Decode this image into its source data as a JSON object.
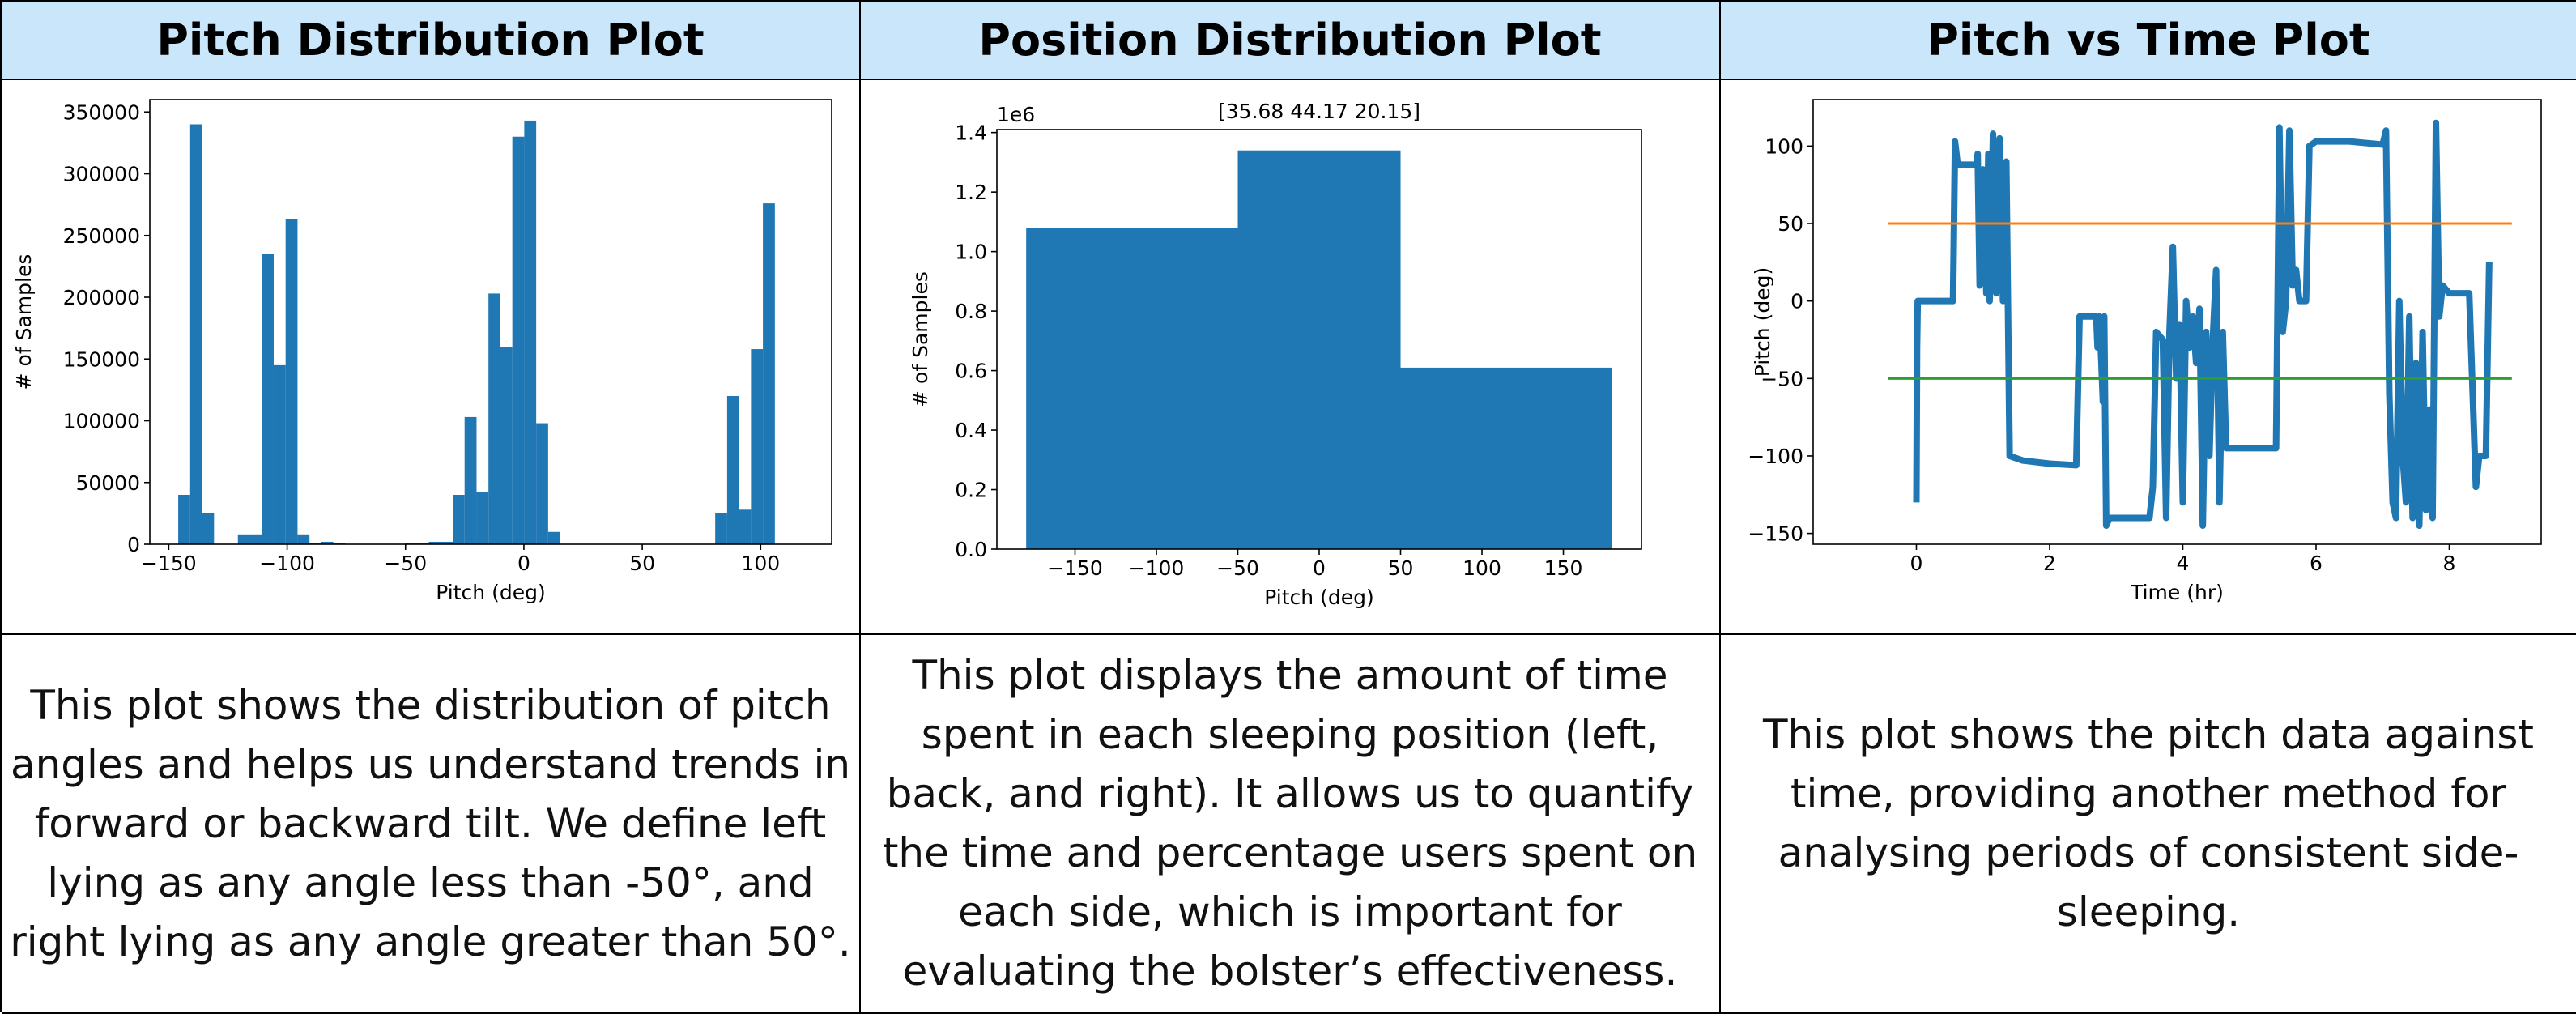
{
  "table": {
    "headers": [
      "Pitch Distribution Plot",
      "Position Distribution Plot",
      "Pitch vs Time Plot"
    ],
    "descriptions": [
      "This plot shows the distribution of pitch angles and helps us understand trends in forward or backward tilt. We define left lying as any angle less than -50°, and right lying as any angle greater than 50°.",
      "This plot displays the amount of time spent in each sleeping position (left, back, and right). It allows us to quantify the time and percentage users spent on each side, which is important for evaluating the bolster’s effectiveness.",
      "This plot shows the pitch data against time, providing another method for analysing periods of consistent side-sleeping."
    ]
  },
  "chart_data": [
    {
      "type": "histogram",
      "xlabel": "Pitch (deg)",
      "ylabel": "# of Samples",
      "color": "#1f77b4",
      "bins": [
        -146,
        -140.96,
        -135.92,
        -130.88,
        -125.84,
        -120.8,
        -115.76,
        -110.72,
        -105.68,
        -100.64,
        -95.6,
        -90.56,
        -85.52,
        -80.48,
        -75.44,
        -70.4,
        -65.36,
        -60.32,
        -55.28,
        -50.24,
        -45.2,
        -40.16,
        -35.12,
        -30.08,
        -25.04,
        -20,
        -14.96,
        -9.92,
        -4.88,
        0.16,
        5.2,
        10.24,
        15.28,
        20.32,
        25.36,
        30.4,
        35.44,
        40.48,
        45.52,
        50.56,
        55.6,
        60.64,
        65.68,
        70.72,
        75.76,
        80.8,
        85.84,
        90.88,
        95.92,
        100.96,
        106
      ],
      "values": [
        40000,
        340000,
        25000,
        0,
        0,
        8000,
        8000,
        235000,
        145000,
        263000,
        8000,
        1000,
        2000,
        1000,
        0,
        0,
        0,
        0,
        0,
        1000,
        1000,
        2000,
        2000,
        40000,
        103000,
        42000,
        203000,
        160000,
        330000,
        343000,
        98000,
        10000,
        0,
        0,
        0,
        0,
        0,
        0,
        0,
        0,
        0,
        0,
        0,
        0,
        0,
        25000,
        120000,
        28000,
        158000,
        276000
      ],
      "xlim": [
        -158,
        130
      ],
      "xticks": [
        {
          "value": -150,
          "label": "−150"
        },
        {
          "value": -100,
          "label": "−100"
        },
        {
          "value": -50,
          "label": "−50"
        },
        0,
        50,
        100
      ],
      "ylim": [
        0,
        360000
      ],
      "yticks": [
        0,
        50000,
        100000,
        150000,
        200000,
        250000,
        300000,
        350000
      ]
    },
    {
      "type": "histogram",
      "title": "[35.68 44.17 20.15]",
      "offset_text": "1e6",
      "xlabel": "Pitch (deg)",
      "ylabel": "# of Samples",
      "color": "#1f77b4",
      "bins": [
        -180,
        -50,
        50,
        180
      ],
      "values": [
        1.08,
        1.34,
        0.61
      ],
      "xlim": [
        -198,
        198
      ],
      "xticks": [
        {
          "value": -150,
          "label": "−150"
        },
        {
          "value": -100,
          "label": "−100"
        },
        {
          "value": -50,
          "label": "−50"
        },
        0,
        50,
        100,
        150
      ],
      "ylim": [
        0,
        1.41
      ],
      "yticks": [
        {
          "value": 0,
          "label": "0.0"
        },
        0.2,
        0.4,
        0.6,
        0.8,
        {
          "value": 1,
          "label": "1.0"
        },
        1.2,
        1.4
      ]
    },
    {
      "type": "line",
      "xlabel": "Time (hr)",
      "ylabel": "Pitch (deg)",
      "series": [
        {
          "color": "#1f77b4",
          "x": [
            0,
            0.01,
            0.02,
            0.5,
            0.55,
            0.58,
            0.62,
            0.9,
            0.92,
            0.95,
            1.0,
            1.05,
            1.08,
            1.1,
            1.15,
            1.2,
            1.25,
            1.3,
            1.35,
            1.4,
            1.6,
            2.0,
            2.4,
            2.45,
            2.7,
            2.72,
            2.75,
            2.8,
            2.82,
            2.85,
            2.9,
            3.5,
            3.55,
            3.6,
            3.7,
            3.75,
            3.8,
            3.85,
            3.9,
            3.95,
            4.0,
            4.05,
            4.1,
            4.15,
            4.2,
            4.25,
            4.3,
            4.35,
            4.4,
            4.45,
            4.5,
            4.55,
            4.6,
            4.65,
            4.7,
            5.4,
            5.45,
            5.5,
            5.55,
            5.6,
            5.65,
            5.7,
            5.75,
            5.85,
            5.9,
            6.0,
            6.5,
            7.0,
            7.05,
            7.1,
            7.15,
            7.2,
            7.25,
            7.3,
            7.35,
            7.4,
            7.45,
            7.5,
            7.55,
            7.6,
            7.65,
            7.7,
            7.75,
            7.8,
            7.85,
            7.9,
            8.0,
            8.3,
            8.4,
            8.45,
            8.55,
            8.6
          ],
          "values": [
            -130,
            -30,
            0,
            0,
            0,
            103,
            88,
            88,
            95,
            10,
            85,
            5,
            95,
            0,
            108,
            5,
            105,
            0,
            90,
            -100,
            -103,
            -105,
            -106,
            -10,
            -10,
            -30,
            -10,
            -65,
            -10,
            -145,
            -140,
            -140,
            -120,
            -20,
            -25,
            -140,
            -20,
            35,
            -50,
            -15,
            -130,
            0,
            -30,
            -10,
            -40,
            -5,
            -145,
            -20,
            -100,
            -25,
            20,
            -130,
            -20,
            -95,
            -95,
            -95,
            112,
            -20,
            0,
            110,
            10,
            20,
            0,
            0,
            100,
            103,
            103,
            101,
            110,
            -60,
            -130,
            -140,
            0,
            -100,
            -130,
            -10,
            -140,
            -40,
            -145,
            -20,
            -135,
            -70,
            -140,
            115,
            -10,
            10,
            5,
            5,
            -120,
            -100,
            -100,
            25
          ]
        },
        {
          "color": "#ff7f0e",
          "x": [
            -0.42,
            8.94
          ],
          "values": [
            50,
            50
          ]
        },
        {
          "color": "#2ca02c",
          "x": [
            -0.42,
            8.94
          ],
          "values": [
            -50,
            -50
          ]
        }
      ],
      "xlim": [
        -1.55,
        9.38
      ],
      "xticks": [
        0,
        2,
        4,
        6,
        8
      ],
      "ylim": [
        -157,
        130
      ],
      "yticks": [
        {
          "value": -150,
          "label": "−150"
        },
        {
          "value": -100,
          "label": "−100"
        },
        {
          "value": -50,
          "label": "−50"
        },
        0,
        50,
        100
      ]
    }
  ]
}
